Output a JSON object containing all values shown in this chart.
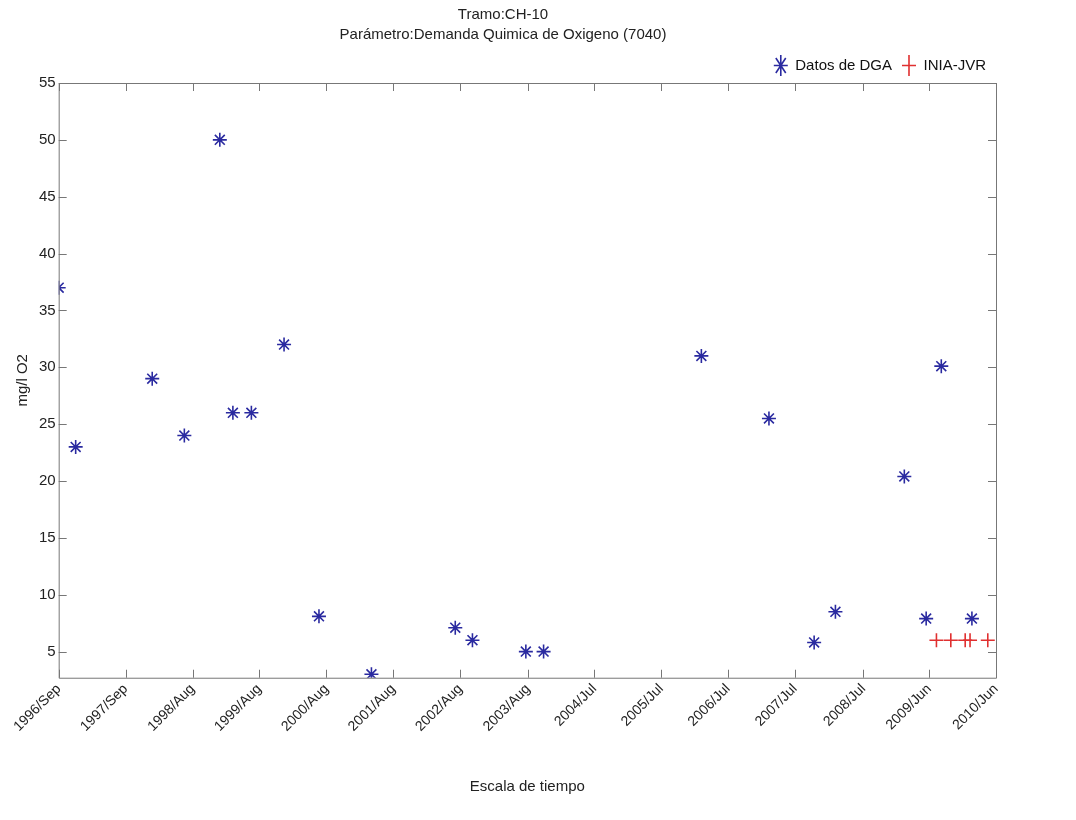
{
  "chart_data": {
    "type": "scatter",
    "title": "Tramo:CH-10",
    "subtitle": "Parámetro:Demanda Quimica de Oxigeno (7040)",
    "xlabel": "Escala de tiempo",
    "ylabel": "mg/l O2",
    "xlim": [
      "1996-09-12",
      "2010-06-11"
    ],
    "xticks": [
      {
        "value": "1996-09-12",
        "label": "1996/Sep"
      },
      {
        "value": "1997-09-05",
        "label": "1997/Sep"
      },
      {
        "value": "1998-08-30",
        "label": "1998/Aug"
      },
      {
        "value": "1999-08-23",
        "label": "1999/Aug"
      },
      {
        "value": "2000-08-16",
        "label": "2000/Aug"
      },
      {
        "value": "2001-08-09",
        "label": "2001/Aug"
      },
      {
        "value": "2002-08-03",
        "label": "2002/Aug"
      },
      {
        "value": "2003-08-01",
        "label": "2003/Aug"
      },
      {
        "value": "2004-07-21",
        "label": "2004/Jul"
      },
      {
        "value": "2005-07-14",
        "label": "2005/Jul"
      },
      {
        "value": "2006-07-07",
        "label": "2006/Jul"
      },
      {
        "value": "2007-07-01",
        "label": "2007/Jul"
      },
      {
        "value": "2008-07-01",
        "label": "2008/Jul"
      },
      {
        "value": "2009-06-18",
        "label": "2009/Jun"
      },
      {
        "value": "2010-06-11",
        "label": "2010/Jun"
      }
    ],
    "ylim": [
      2.7,
      55
    ],
    "yticks": [
      5,
      10,
      15,
      20,
      25,
      30,
      35,
      40,
      45,
      50,
      55
    ],
    "grid": false,
    "legend": "top right",
    "series": [
      {
        "name": "Datos de DGA",
        "color": "#2a2aa0",
        "x": [
          "1996-09-12",
          "1996-12-12",
          "1998-01-26",
          "1998-07-17",
          "1999-01-23",
          "1999-04-03",
          "1999-07-11",
          "2000-01-02",
          "2000-07-07",
          "2001-04-14",
          "2002-07-07",
          "2002-10-07",
          "2003-07-20",
          "2003-10-23",
          "2006-02-14",
          "2007-02-11",
          "2007-10-11",
          "2008-02-02",
          "2009-02-05",
          "2009-06-02",
          "2009-08-22",
          "2010-02-02"
        ],
        "values": [
          37,
          23,
          29,
          24,
          50,
          26,
          26,
          32,
          8.1,
          3,
          7.1,
          6,
          5,
          5,
          31,
          25.5,
          5.8,
          8.5,
          20.4,
          7.9,
          30.1,
          7.9
        ]
      },
      {
        "name": "INIA-JVR",
        "color": "#e03030",
        "marker": "cross",
        "x": [
          "2009-07-27",
          "2009-10-12",
          "2009-12-28",
          "2010-01-23",
          "2010-04-28"
        ],
        "values": [
          6,
          6,
          6,
          6,
          6
        ]
      }
    ]
  }
}
